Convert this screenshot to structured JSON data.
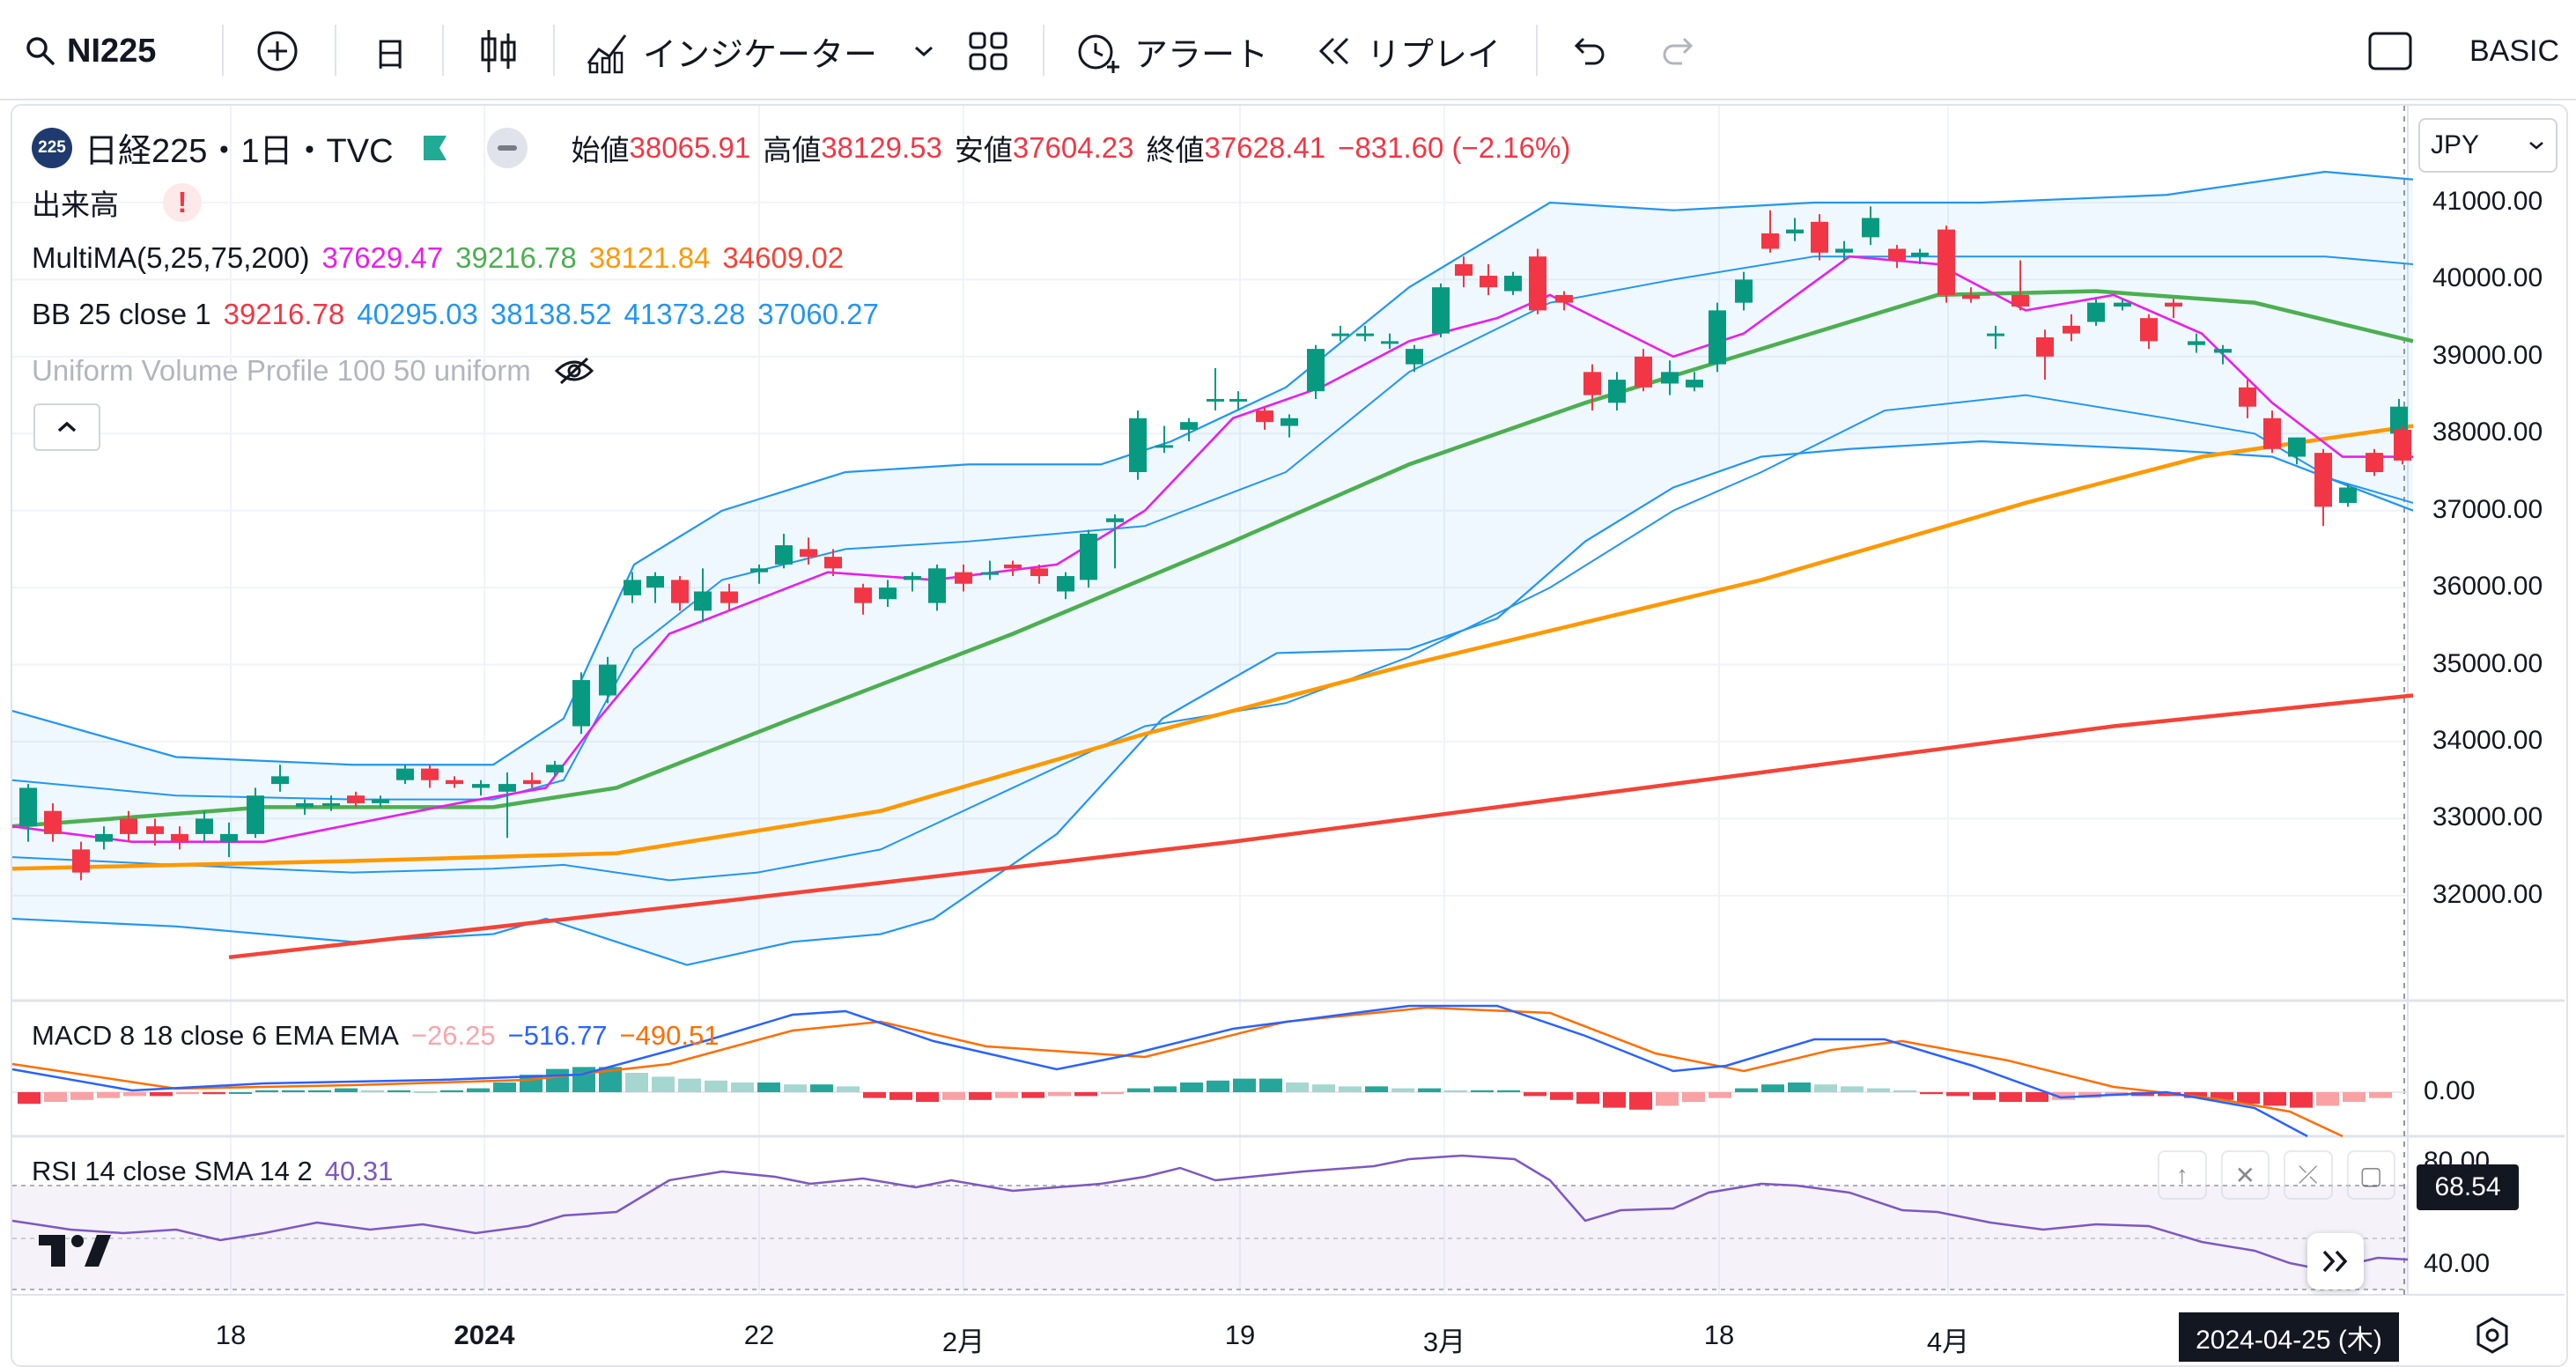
{
  "toolbar": {
    "symbol": "NI225",
    "interval": "日",
    "indicators_label": "インジケーター",
    "alert_label": "アラート",
    "replay_label": "リプレイ",
    "plan_label": "BASIC"
  },
  "legend": {
    "logo_text": "225",
    "title": "日経225・1日・TVC",
    "open_label": "始値",
    "open_value": "38065.91",
    "high_label": "高値",
    "high_value": "38129.53",
    "low_label": "安値",
    "low_value": "37604.23",
    "close_label": "終値",
    "close_value": "37628.41",
    "change": "−831.60 (−2.16%)",
    "volume_label": "出来高",
    "ma_name": "MultiMA(5,25,75,200)",
    "ma_values": [
      "37629.47",
      "39216.78",
      "38121.84",
      "34609.02"
    ],
    "bb_name": "BB 25 close 1",
    "bb_values": [
      "39216.78",
      "40295.03",
      "38138.52",
      "41373.28",
      "37060.27"
    ],
    "vp_name": "Uniform Volume Profile 100 50 uniform"
  },
  "price_axis": {
    "currency": "JPY",
    "labels": [
      "41000.00",
      "40000.00",
      "39000.00",
      "38000.00",
      "37000.00",
      "36000.00",
      "35000.00",
      "34000.00",
      "33000.00",
      "32000.00"
    ]
  },
  "macd": {
    "name": "MACD 8 18 close 6 EMA EMA",
    "values": [
      "−26.25",
      "−516.77",
      "−490.51"
    ],
    "axis_label": "0.00"
  },
  "rsi": {
    "name": "RSI 14 close SMA 14 2",
    "value": "40.31",
    "axis_labels": [
      "80.00",
      "40.00"
    ],
    "marker": "68.54"
  },
  "time_axis": {
    "labels": [
      "18",
      "2024",
      "22",
      "2月",
      "19",
      "3月",
      "18",
      "4月"
    ],
    "crosshair_date": "2024-04-25 (木)"
  },
  "colors": {
    "up": "#089981",
    "down": "#f23645",
    "ma5": "#e91eea",
    "ma25": "#4caf50",
    "ma75": "#ff9800",
    "ma200": "#f44336",
    "bb": "#2196f3",
    "macd": "#2962ff",
    "signal": "#ff6d00",
    "rsi": "#7e57c2"
  },
  "icons": [
    "search-icon",
    "plus-circle-icon",
    "candles-icon",
    "indicators-icon",
    "chevron-down-icon",
    "layout-grid-icon",
    "alarm-clock-icon",
    "rewind-icon",
    "undo-icon",
    "redo-icon",
    "fullscreen-icon",
    "eye-off-icon",
    "chevron-up-icon",
    "tradingview-logo",
    "double-chevron-right-icon",
    "settings-icon"
  ]
}
